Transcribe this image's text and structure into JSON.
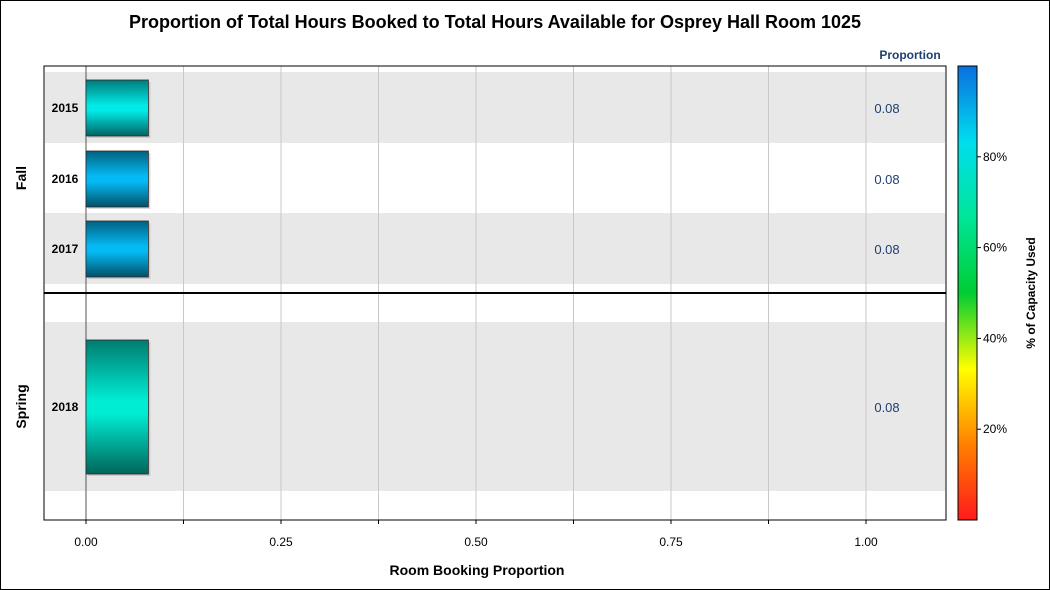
{
  "chart_data": {
    "type": "bar",
    "orientation": "horizontal",
    "title": "Proportion of Total Hours Booked to Total Hours Available for Osprey Hall Room 1025",
    "value_column_header": "Proportion",
    "xlabel": "Room Booking Proportion",
    "xlim": [
      0,
      1.08
    ],
    "x_ticks": [
      "0.00",
      "0.25",
      "0.50",
      "0.75",
      "1.00"
    ],
    "groups": [
      {
        "name": "Fall",
        "rows": [
          {
            "category": "2015",
            "value": 0.08,
            "label": "0.08",
            "capacity_used": 80
          },
          {
            "category": "2016",
            "value": 0.08,
            "label": "0.08",
            "capacity_used": 90
          },
          {
            "category": "2017",
            "value": 0.08,
            "label": "0.08",
            "capacity_used": 90
          }
        ]
      },
      {
        "name": "Spring",
        "rows": [
          {
            "category": "2018",
            "value": 0.08,
            "label": "0.08",
            "capacity_used": 76
          }
        ]
      }
    ],
    "colorbar": {
      "title": "% of Capacity Used",
      "ticks": [
        "20%",
        "40%",
        "60%",
        "80%"
      ],
      "tick_values": [
        20,
        40,
        60,
        80
      ],
      "range": [
        0,
        100
      ],
      "colors": [
        "#ff1a1a",
        "#ff8000",
        "#ffff00",
        "#00cc33",
        "#00e699",
        "#00ddee",
        "#0a6fe0"
      ]
    },
    "grid": true,
    "band_color": "#e8e8e8"
  }
}
